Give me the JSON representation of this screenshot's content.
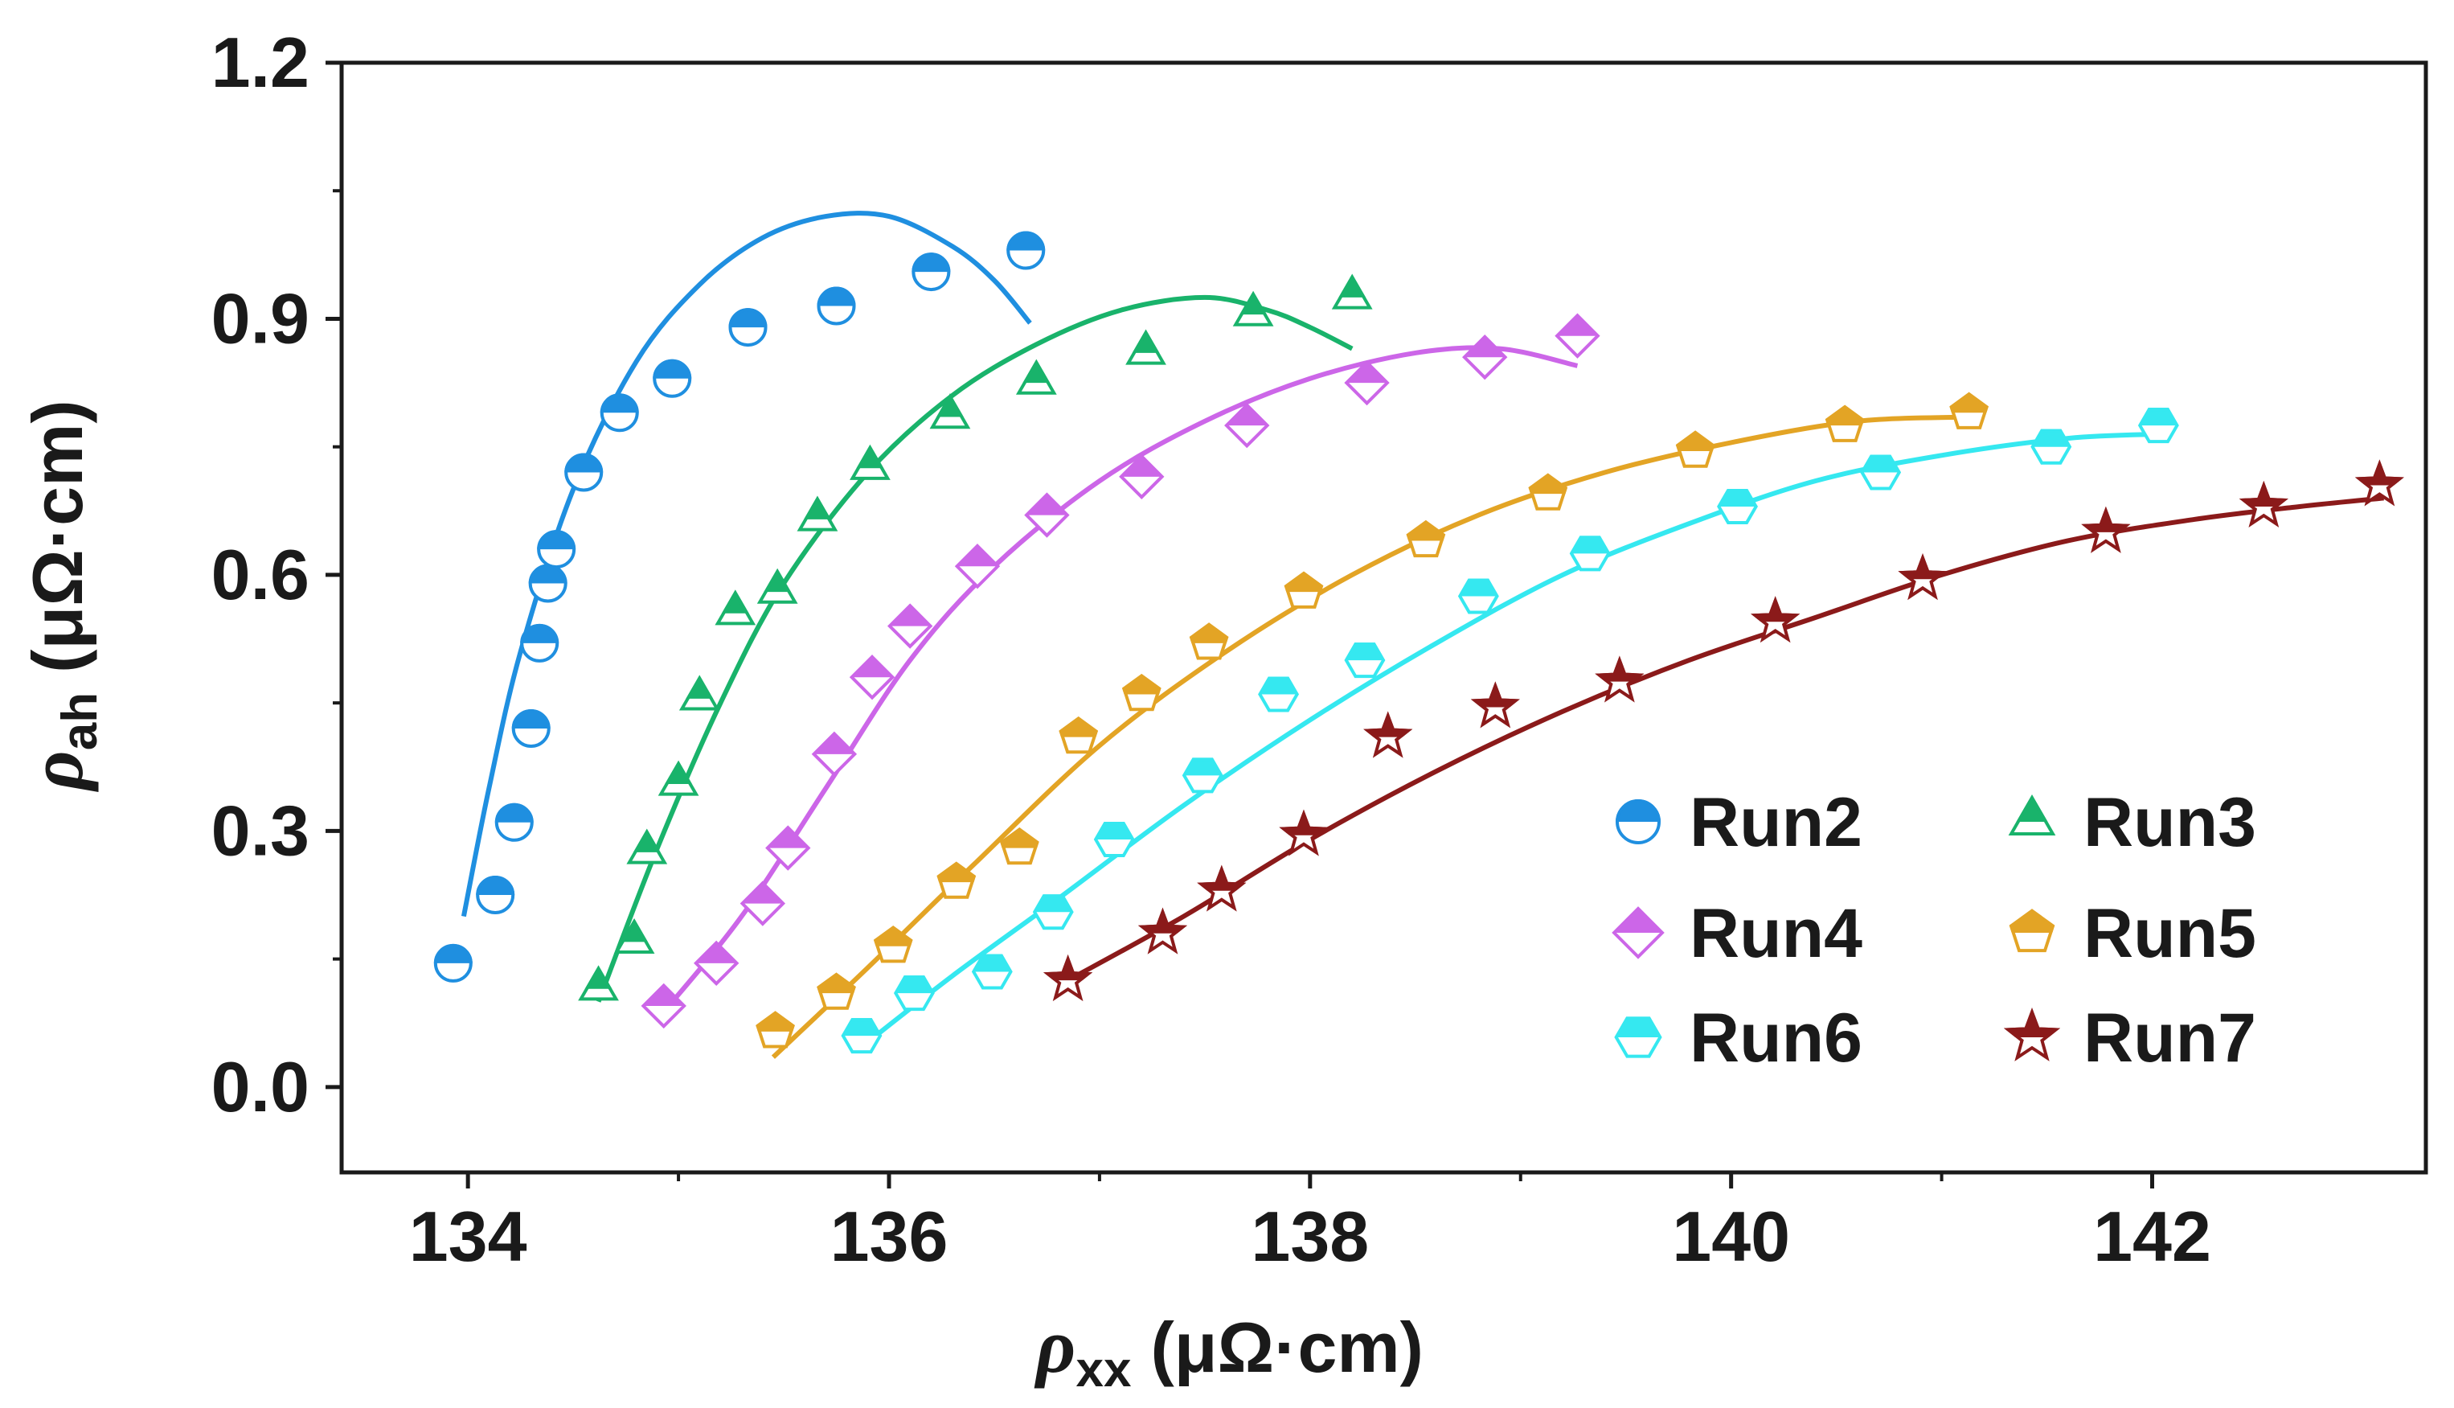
{
  "chart_data": {
    "type": "scatter",
    "title": "",
    "xlabel": {
      "symbol": "ρ",
      "sub": "xx",
      "unit": "(μΩ·cm)"
    },
    "ylabel": {
      "symbol": "ρ",
      "sub": "ah",
      "unit": "(μΩ·cm)"
    },
    "xlim": [
      133.4,
      143.3
    ],
    "ylim": [
      -0.1,
      1.2
    ],
    "xticks": [
      134,
      136,
      138,
      140,
      142
    ],
    "xtick_labels": [
      "134",
      "136",
      "138",
      "140",
      "142"
    ],
    "yticks": [
      0.0,
      0.3,
      0.6,
      0.9,
      1.2
    ],
    "ytick_labels": [
      "0.0",
      "0.3",
      "0.6",
      "0.9",
      "1.2"
    ],
    "grid": false,
    "legend_position": "bottom-right",
    "series": [
      {
        "name": "Run2",
        "color": "#1f8fe0",
        "marker": "circle-half",
        "x": [
          133.93,
          134.13,
          134.22,
          134.3,
          134.34,
          134.38,
          134.42,
          134.55,
          134.72,
          134.97,
          135.33,
          135.75,
          136.2,
          136.65
        ],
        "y": [
          0.145,
          0.225,
          0.31,
          0.42,
          0.52,
          0.59,
          0.63,
          0.72,
          0.79,
          0.83,
          0.89,
          0.915,
          0.955,
          0.98
        ],
        "fit": [
          [
            133.98,
            0.2
          ],
          [
            134.1,
            0.35
          ],
          [
            134.25,
            0.51
          ],
          [
            134.5,
            0.7
          ],
          [
            134.8,
            0.85
          ],
          [
            135.1,
            0.94
          ],
          [
            135.4,
            0.995
          ],
          [
            135.7,
            1.02
          ],
          [
            136.0,
            1.02
          ],
          [
            136.3,
            0.985
          ],
          [
            136.5,
            0.945
          ],
          [
            136.67,
            0.895
          ]
        ]
      },
      {
        "name": "Run3",
        "color": "#19b36b",
        "marker": "triangle-half",
        "x": [
          134.62,
          134.79,
          134.85,
          135.0,
          135.1,
          135.27,
          135.47,
          135.66,
          135.91,
          136.29,
          136.7,
          137.22,
          137.73,
          138.2
        ],
        "y": [
          0.115,
          0.17,
          0.275,
          0.355,
          0.455,
          0.555,
          0.58,
          0.665,
          0.725,
          0.785,
          0.825,
          0.86,
          0.905,
          0.925
        ],
        "fit": [
          [
            134.62,
            0.1
          ],
          [
            134.9,
            0.28
          ],
          [
            135.2,
            0.45
          ],
          [
            135.5,
            0.59
          ],
          [
            135.9,
            0.72
          ],
          [
            136.3,
            0.81
          ],
          [
            136.7,
            0.87
          ],
          [
            137.1,
            0.91
          ],
          [
            137.5,
            0.925
          ],
          [
            137.8,
            0.91
          ],
          [
            138.0,
            0.89
          ],
          [
            138.2,
            0.865
          ]
        ]
      },
      {
        "name": "Run4",
        "color": "#cc66e8",
        "marker": "diamond-half",
        "x": [
          134.93,
          135.18,
          135.4,
          135.52,
          135.74,
          135.92,
          136.1,
          136.42,
          136.75,
          137.2,
          137.7,
          138.27,
          138.83,
          139.27
        ],
        "y": [
          0.095,
          0.145,
          0.215,
          0.28,
          0.39,
          0.48,
          0.54,
          0.61,
          0.67,
          0.715,
          0.775,
          0.825,
          0.855,
          0.88
        ],
        "fit": [
          [
            134.92,
            0.085
          ],
          [
            135.3,
            0.2
          ],
          [
            135.7,
            0.35
          ],
          [
            136.1,
            0.5
          ],
          [
            136.5,
            0.61
          ],
          [
            137.0,
            0.71
          ],
          [
            137.5,
            0.78
          ],
          [
            138.0,
            0.83
          ],
          [
            138.5,
            0.86
          ],
          [
            138.9,
            0.865
          ],
          [
            139.27,
            0.845
          ]
        ]
      },
      {
        "name": "Run5",
        "color": "#e3a425",
        "marker": "pentagon-half",
        "x": [
          135.46,
          135.75,
          136.02,
          136.32,
          136.62,
          136.9,
          137.2,
          137.52,
          137.97,
          138.55,
          139.13,
          139.83,
          140.54,
          141.13
        ],
        "y": [
          0.065,
          0.11,
          0.165,
          0.24,
          0.28,
          0.41,
          0.46,
          0.52,
          0.58,
          0.64,
          0.695,
          0.745,
          0.775,
          0.79
        ],
        "fit": [
          [
            135.45,
            0.035
          ],
          [
            135.9,
            0.14
          ],
          [
            136.4,
            0.26
          ],
          [
            137.0,
            0.4
          ],
          [
            137.6,
            0.51
          ],
          [
            138.2,
            0.6
          ],
          [
            138.8,
            0.67
          ],
          [
            139.4,
            0.72
          ],
          [
            140.0,
            0.755
          ],
          [
            140.6,
            0.78
          ],
          [
            141.15,
            0.785
          ]
        ]
      },
      {
        "name": "Run6",
        "color": "#35e8f0",
        "marker": "hexagon-half",
        "x": [
          135.87,
          136.12,
          136.49,
          136.78,
          137.07,
          137.49,
          137.85,
          138.26,
          138.8,
          139.33,
          140.03,
          140.71,
          141.52,
          142.03
        ],
        "y": [
          0.06,
          0.11,
          0.135,
          0.205,
          0.29,
          0.365,
          0.46,
          0.5,
          0.575,
          0.625,
          0.68,
          0.72,
          0.75,
          0.775
        ],
        "fit": [
          [
            135.86,
            0.045
          ],
          [
            136.3,
            0.13
          ],
          [
            136.8,
            0.22
          ],
          [
            137.4,
            0.33
          ],
          [
            138.0,
            0.43
          ],
          [
            138.6,
            0.52
          ],
          [
            139.2,
            0.6
          ],
          [
            139.8,
            0.66
          ],
          [
            140.4,
            0.71
          ],
          [
            141.0,
            0.74
          ],
          [
            141.6,
            0.76
          ],
          [
            142.05,
            0.765
          ]
        ]
      },
      {
        "name": "Run7",
        "color": "#8b1a1a",
        "marker": "star-half",
        "x": [
          136.85,
          137.3,
          137.58,
          137.97,
          138.37,
          138.88,
          139.47,
          140.21,
          140.91,
          141.78,
          142.53,
          143.08
        ],
        "y": [
          0.125,
          0.18,
          0.23,
          0.295,
          0.41,
          0.445,
          0.475,
          0.545,
          0.595,
          0.65,
          0.68,
          0.705
        ],
        "fit": [
          [
            136.85,
            0.125
          ],
          [
            137.4,
            0.2
          ],
          [
            138.0,
            0.29
          ],
          [
            138.6,
            0.37
          ],
          [
            139.2,
            0.44
          ],
          [
            139.8,
            0.5
          ],
          [
            140.4,
            0.55
          ],
          [
            141.0,
            0.6
          ],
          [
            141.6,
            0.64
          ],
          [
            142.2,
            0.665
          ],
          [
            142.7,
            0.68
          ],
          [
            143.1,
            0.69
          ]
        ]
      }
    ]
  }
}
